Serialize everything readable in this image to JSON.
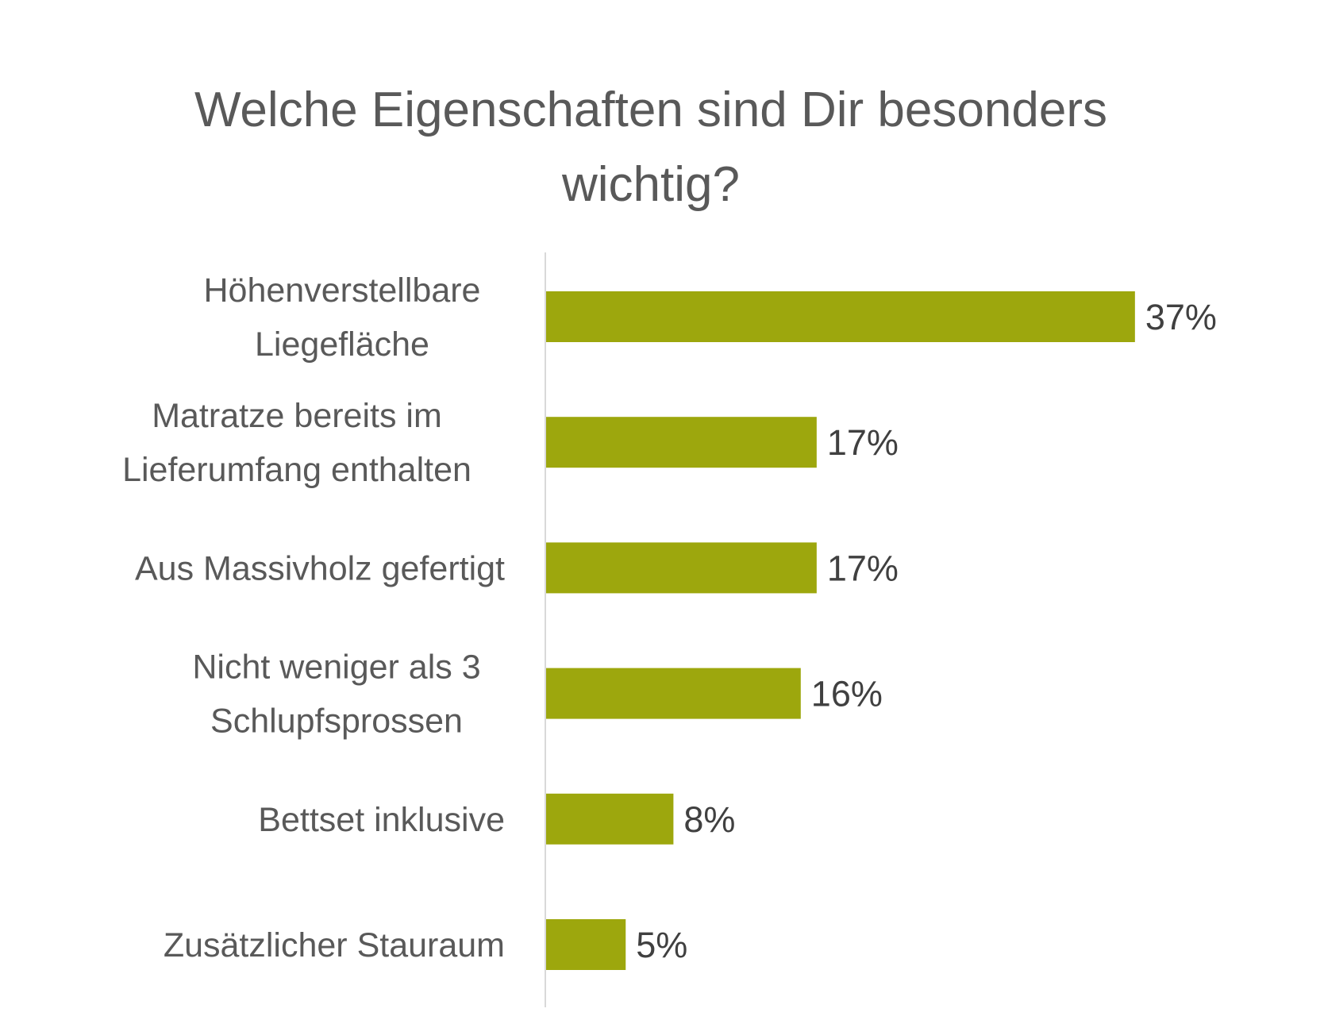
{
  "chart_data": {
    "type": "bar",
    "orientation": "horizontal",
    "title": "Welche Eigenschaften sind Dir besonders wichtig?",
    "title_lines": [
      "Welche Eigenschaften sind Dir besonders",
      "wichtig?"
    ],
    "categories": [
      [
        "Höhenverstellbare",
        "Liegefläche"
      ],
      [
        "Matratze bereits im",
        "Lieferumfang enthalten"
      ],
      [
        "Aus Massivholz gefertigt"
      ],
      [
        "Nicht weniger als 3",
        "Schlupfsprossen"
      ],
      [
        "Bettset inklusive"
      ],
      [
        "Zusätzlicher Stauraum"
      ]
    ],
    "values": [
      37,
      17,
      17,
      16,
      8,
      5
    ],
    "value_labels": [
      "37%",
      "17%",
      "17%",
      "16%",
      "8%",
      "5%"
    ],
    "unit": "%",
    "xlim": [
      0,
      40
    ],
    "grid": false,
    "legend": "none",
    "bar_color": "#9DA70D"
  }
}
